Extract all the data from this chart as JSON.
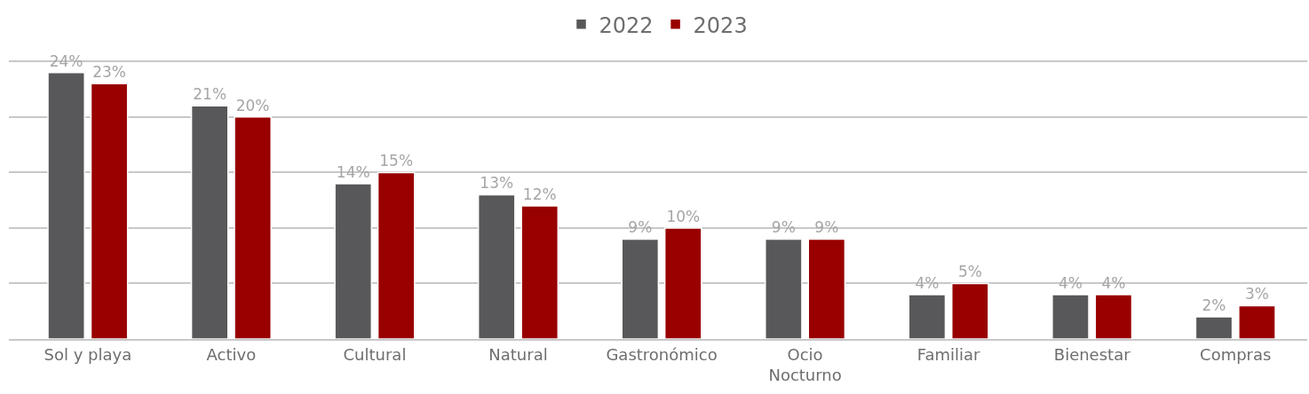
{
  "chart_data": {
    "type": "bar",
    "categories": [
      "Sol y playa",
      "Activo",
      "Cultural",
      "Natural",
      "Gastronómico",
      "Ocio\nNocturno",
      "Familiar",
      "Bienestar",
      "Compras"
    ],
    "series": [
      {
        "name": "2022",
        "color": "#58585a",
        "values": [
          24,
          21,
          14,
          13,
          9,
          9,
          4,
          4,
          2
        ],
        "value_labels": [
          "24%",
          "21%",
          "14%",
          "13%",
          "9%",
          "9%",
          "4%",
          "4%",
          "2%"
        ]
      },
      {
        "name": "2023",
        "color": "#990000",
        "values": [
          23,
          20,
          15,
          12,
          10,
          9,
          5,
          4,
          3
        ],
        "value_labels": [
          "23%",
          "20%",
          "15%",
          "12%",
          "10%",
          "9%",
          "5%",
          "4%",
          "3%"
        ]
      }
    ],
    "tick_labels": "x",
    "grid": "y",
    "legend": "top"
  }
}
